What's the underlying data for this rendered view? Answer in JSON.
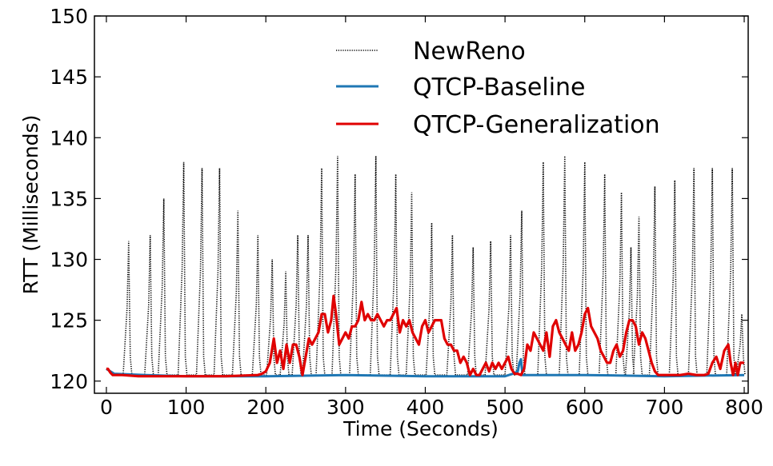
{
  "chart_data": {
    "type": "line",
    "title": "",
    "xlabel": "Time (Seconds)",
    "ylabel": "RTT (Milliseconds)",
    "xlim": [
      -15,
      805
    ],
    "ylim": [
      119,
      150
    ],
    "xticks": [
      0,
      100,
      200,
      300,
      400,
      500,
      600,
      700,
      800
    ],
    "yticks": [
      120,
      125,
      130,
      135,
      140,
      145,
      150
    ],
    "grid": false,
    "legend_position": "top-right",
    "series": [
      {
        "name": "NewReno",
        "style": "dotted",
        "color": "#000000",
        "peaks": [
          {
            "x": 28,
            "y": 131.5
          },
          {
            "x": 55,
            "y": 132.0
          },
          {
            "x": 72,
            "y": 135.0
          },
          {
            "x": 97,
            "y": 138.0
          },
          {
            "x": 120,
            "y": 137.5
          },
          {
            "x": 142,
            "y": 137.5
          },
          {
            "x": 165,
            "y": 134.0
          },
          {
            "x": 190,
            "y": 132.0
          },
          {
            "x": 208,
            "y": 130.0
          },
          {
            "x": 225,
            "y": 129.0
          },
          {
            "x": 240,
            "y": 132.0
          },
          {
            "x": 253,
            "y": 132.0
          },
          {
            "x": 270,
            "y": 137.5
          },
          {
            "x": 290,
            "y": 138.5
          },
          {
            "x": 312,
            "y": 137.0
          },
          {
            "x": 338,
            "y": 138.5
          },
          {
            "x": 363,
            "y": 137.0
          },
          {
            "x": 383,
            "y": 135.5
          },
          {
            "x": 408,
            "y": 133.0
          },
          {
            "x": 434,
            "y": 132.0
          },
          {
            "x": 460,
            "y": 131.0
          },
          {
            "x": 482,
            "y": 131.5
          },
          {
            "x": 507,
            "y": 132.0
          },
          {
            "x": 521,
            "y": 134.0
          },
          {
            "x": 548,
            "y": 138.0
          },
          {
            "x": 575,
            "y": 138.5
          },
          {
            "x": 600,
            "y": 138.0
          },
          {
            "x": 625,
            "y": 137.0
          },
          {
            "x": 646,
            "y": 135.5
          },
          {
            "x": 658,
            "y": 131.0
          },
          {
            "x": 668,
            "y": 133.5
          },
          {
            "x": 688,
            "y": 136.0
          },
          {
            "x": 713,
            "y": 136.5
          },
          {
            "x": 737,
            "y": 137.5
          },
          {
            "x": 760,
            "y": 137.5
          },
          {
            "x": 785,
            "y": 137.5
          },
          {
            "x": 797,
            "y": 125.5
          }
        ],
        "floor": 120.5
      },
      {
        "name": "QTCP-Baseline",
        "style": "solid",
        "color": "#1f77b4",
        "x": [
          0,
          10,
          50,
          100,
          200,
          300,
          400,
          500,
          510,
          516,
          518,
          520,
          522,
          600,
          700,
          800
        ],
        "y": [
          121.0,
          120.6,
          120.5,
          120.4,
          120.4,
          120.5,
          120.4,
          120.4,
          120.6,
          120.8,
          121.5,
          121.8,
          120.5,
          120.5,
          120.4,
          120.5
        ]
      },
      {
        "name": "QTCP-Generalization",
        "style": "solid",
        "color": "#e00000",
        "x": [
          0,
          2,
          5,
          8,
          20,
          40,
          60,
          100,
          150,
          190,
          195,
          200,
          205,
          210,
          214,
          218,
          222,
          226,
          230,
          234,
          238,
          242,
          246,
          250,
          254,
          258,
          262,
          266,
          270,
          274,
          278,
          282,
          285,
          288,
          292,
          296,
          300,
          304,
          308,
          312,
          316,
          320,
          324,
          328,
          332,
          336,
          340,
          344,
          348,
          352,
          356,
          360,
          364,
          368,
          372,
          376,
          380,
          384,
          388,
          392,
          396,
          400,
          404,
          408,
          412,
          416,
          420,
          424,
          428,
          432,
          436,
          440,
          444,
          448,
          452,
          456,
          460,
          464,
          468,
          472,
          476,
          480,
          484,
          488,
          492,
          496,
          500,
          504,
          508,
          512,
          516,
          520,
          524,
          528,
          532,
          536,
          540,
          544,
          548,
          552,
          556,
          560,
          564,
          568,
          572,
          576,
          580,
          584,
          588,
          592,
          596,
          600,
          604,
          608,
          612,
          616,
          620,
          624,
          628,
          632,
          636,
          640,
          644,
          648,
          652,
          656,
          660,
          664,
          668,
          672,
          676,
          680,
          684,
          688,
          692,
          700,
          710,
          720,
          730,
          740,
          750,
          755,
          760,
          765,
          770,
          775,
          780,
          783,
          786,
          789,
          792,
          795,
          800
        ],
        "y": [
          121.0,
          121.0,
          120.7,
          120.5,
          120.5,
          120.4,
          120.4,
          120.4,
          120.4,
          120.5,
          120.6,
          120.8,
          121.5,
          123.5,
          121.5,
          122.5,
          121.0,
          123.0,
          121.5,
          123.0,
          123.0,
          122.0,
          120.5,
          122.0,
          123.5,
          123.0,
          123.5,
          124.0,
          125.5,
          125.5,
          124.0,
          125.0,
          127.0,
          125.5,
          123.0,
          123.5,
          124.0,
          123.5,
          124.5,
          124.5,
          125.0,
          126.5,
          125.0,
          125.5,
          125.0,
          125.0,
          125.5,
          125.0,
          124.5,
          125.0,
          125.0,
          125.5,
          126.0,
          124.0,
          125.0,
          124.5,
          125.0,
          124.0,
          123.5,
          123.0,
          124.5,
          125.0,
          124.0,
          124.5,
          125.0,
          125.0,
          125.0,
          123.5,
          123.0,
          123.0,
          122.5,
          122.5,
          121.5,
          122.0,
          121.5,
          120.5,
          121.0,
          120.5,
          120.5,
          121.0,
          121.5,
          120.8,
          121.5,
          121.0,
          121.5,
          121.0,
          121.5,
          122.0,
          121.0,
          120.6,
          120.6,
          120.5,
          121.0,
          123.0,
          122.5,
          124.0,
          123.5,
          123.0,
          122.5,
          124.0,
          122.0,
          124.5,
          125.0,
          124.0,
          123.5,
          123.0,
          122.5,
          124.0,
          122.5,
          123.0,
          124.0,
          125.5,
          126.0,
          124.5,
          124.0,
          123.5,
          122.5,
          122.0,
          121.5,
          121.5,
          122.5,
          123.0,
          122.0,
          122.5,
          124.0,
          125.0,
          125.0,
          124.5,
          123.0,
          124.0,
          123.5,
          122.5,
          121.5,
          120.8,
          120.5,
          120.5,
          120.5,
          120.5,
          120.6,
          120.5,
          120.5,
          120.6,
          121.5,
          122.0,
          121.0,
          122.5,
          123.0,
          121.5,
          120.5,
          121.5,
          120.5,
          121.5,
          121.5
        ]
      }
    ]
  }
}
